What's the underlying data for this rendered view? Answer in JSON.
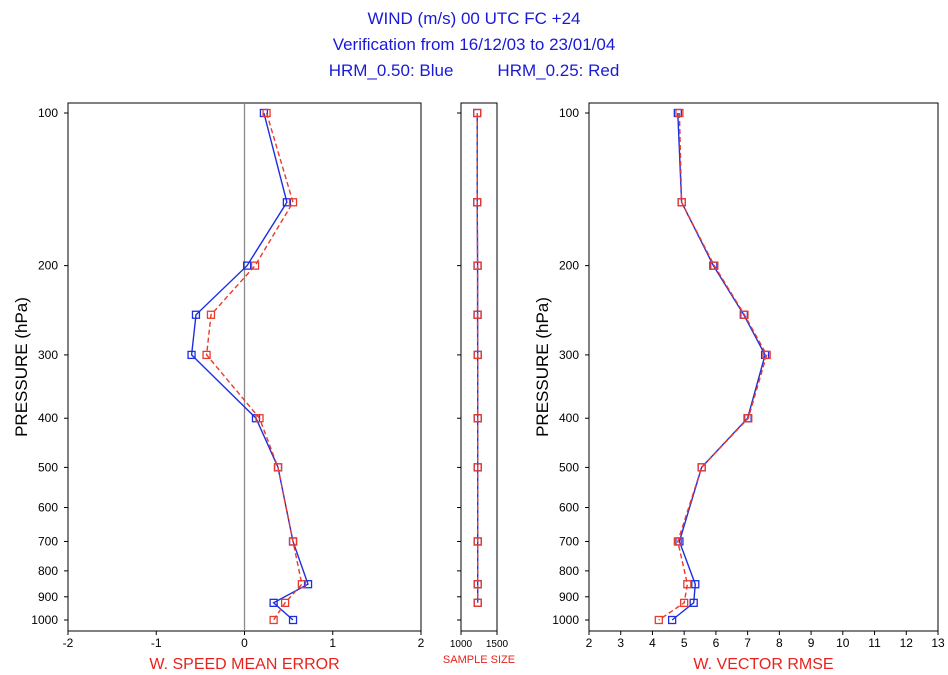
{
  "header": {
    "line1": "WIND (m/s)  00 UTC  FC +24",
    "line2": "Verification from 16/12/03 to 23/01/04",
    "line3_blue": "HRM_0.50: Blue",
    "line3_red": "HRM_0.25: Red"
  },
  "colors": {
    "blue": "#1f2ee0",
    "red": "#ea3a2c",
    "title": "#1a1ad6",
    "xlabel": "#e8231e"
  },
  "chart_data": [
    {
      "type": "line",
      "xlabel": "W. SPEED MEAN ERROR",
      "ylabel": "PRESSURE (hPa)",
      "xlim": [
        -2,
        2
      ],
      "xticks": [
        -2,
        -1,
        0,
        1,
        2
      ],
      "ylim": [
        1000,
        100
      ],
      "yscale": "log",
      "yticks": [
        100,
        200,
        300,
        400,
        500,
        600,
        700,
        800,
        900,
        1000
      ],
      "zero_line": true,
      "series": [
        {
          "color": "blue",
          "style": "solid",
          "points": [
            [
              0.22,
              100
            ],
            [
              0.48,
              150
            ],
            [
              0.03,
              200
            ],
            [
              -0.55,
              250
            ],
            [
              -0.6,
              300
            ],
            [
              0.13,
              400
            ],
            [
              0.38,
              500
            ],
            [
              0.55,
              700
            ],
            [
              0.72,
              850
            ],
            [
              0.33,
              925
            ],
            [
              0.55,
              1000
            ]
          ]
        },
        {
          "color": "red",
          "style": "dashed",
          "points": [
            [
              0.25,
              100
            ],
            [
              0.55,
              150
            ],
            [
              0.12,
              200
            ],
            [
              -0.38,
              250
            ],
            [
              -0.43,
              300
            ],
            [
              0.17,
              400
            ],
            [
              0.38,
              500
            ],
            [
              0.55,
              700
            ],
            [
              0.65,
              850
            ],
            [
              0.46,
              925
            ],
            [
              0.33,
              1000
            ]
          ]
        }
      ]
    },
    {
      "type": "line",
      "xlabel": "SAMPLE SIZE",
      "xlim": [
        1000,
        1500
      ],
      "xticks": [
        1000,
        1500
      ],
      "ylim": [
        1000,
        100
      ],
      "yscale": "log",
      "series": [
        {
          "color": "blue",
          "style": "solid",
          "points": [
            [
              1225,
              100
            ],
            [
              1225,
              150
            ],
            [
              1230,
              200
            ],
            [
              1230,
              250
            ],
            [
              1232,
              300
            ],
            [
              1232,
              400
            ],
            [
              1232,
              500
            ],
            [
              1232,
              700
            ],
            [
              1232,
              850
            ],
            [
              1232,
              925
            ]
          ]
        },
        {
          "color": "red",
          "style": "dashed",
          "points": [
            [
              1225,
              100
            ],
            [
              1225,
              150
            ],
            [
              1230,
              200
            ],
            [
              1230,
              250
            ],
            [
              1232,
              300
            ],
            [
              1232,
              400
            ],
            [
              1232,
              500
            ],
            [
              1232,
              700
            ],
            [
              1232,
              850
            ],
            [
              1232,
              925
            ]
          ]
        }
      ]
    },
    {
      "type": "line",
      "xlabel": "W. VECTOR RMSE",
      "ylabel": "PRESSURE (hPa)",
      "xlim": [
        2,
        13
      ],
      "xticks": [
        2,
        3,
        4,
        5,
        6,
        7,
        8,
        9,
        10,
        11,
        12,
        13
      ],
      "ylim": [
        1000,
        100
      ],
      "yscale": "log",
      "yticks": [
        100,
        200,
        300,
        400,
        500,
        600,
        700,
        800,
        900,
        1000
      ],
      "series": [
        {
          "color": "blue",
          "style": "solid",
          "points": [
            [
              4.8,
              100
            ],
            [
              4.92,
              150
            ],
            [
              5.92,
              200
            ],
            [
              6.88,
              250
            ],
            [
              7.55,
              300
            ],
            [
              7.0,
              400
            ],
            [
              5.55,
              500
            ],
            [
              4.85,
              700
            ],
            [
              5.35,
              850
            ],
            [
              5.3,
              925
            ],
            [
              4.62,
              1000
            ]
          ]
        },
        {
          "color": "red",
          "style": "dashed",
          "points": [
            [
              4.85,
              100
            ],
            [
              4.92,
              150
            ],
            [
              5.95,
              200
            ],
            [
              6.9,
              250
            ],
            [
              7.6,
              300
            ],
            [
              7.02,
              400
            ],
            [
              5.55,
              500
            ],
            [
              4.8,
              700
            ],
            [
              5.1,
              850
            ],
            [
              5.0,
              925
            ],
            [
              4.2,
              1000
            ]
          ]
        }
      ]
    }
  ]
}
